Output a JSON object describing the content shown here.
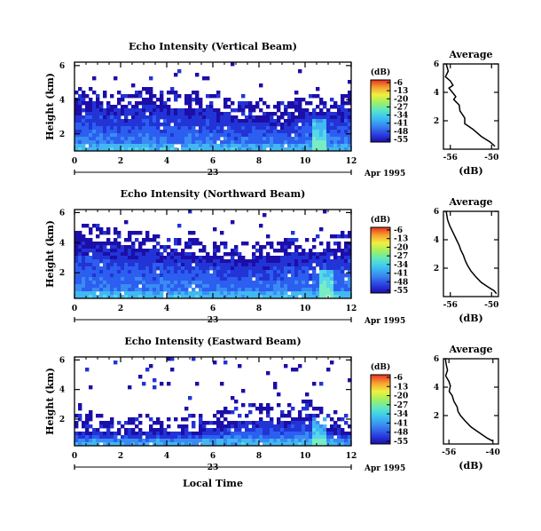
{
  "chart_data": [
    {
      "type": "heatmap",
      "title": "Echo Intensity (Vertical Beam)",
      "ylabel": "Height (km)",
      "x_ticks": [
        "0",
        "2",
        "4",
        "6",
        "8",
        "10",
        "12"
      ],
      "y_ticks": [
        "2",
        "4",
        "6"
      ],
      "xlim": [
        0,
        12
      ],
      "ylim": [
        1,
        6.2
      ],
      "date_day": "23",
      "date_label": "Apr 1995",
      "colorbar": {
        "unit": "(dB)",
        "ticks": [
          "-6",
          "-13",
          "-20",
          "-27",
          "-34",
          "-41",
          "-48",
          "-55"
        ]
      },
      "echo_top_km": [
        4.0,
        4.0,
        3.6,
        3.9,
        3.7,
        3.7,
        3.5,
        3.0,
        3.2,
        3.0,
        3.5,
        3.3,
        3.7
      ],
      "core_peak": {
        "time_h": 10.6,
        "top_km": 3.0,
        "dB": -34
      },
      "average": {
        "title": "Average",
        "xlabel": "(dB)",
        "x_ticks": [
          "-56",
          "-50"
        ],
        "y_ticks": [
          "2",
          "4",
          "6"
        ],
        "xlim": [
          -57,
          -49
        ],
        "ylim": [
          0,
          6
        ],
        "x": [
          -56.6,
          -56.3,
          -56.7,
          -56.0,
          -55.6,
          -56.2,
          -55.7,
          -55.2,
          -55.5,
          -54.7,
          -54.6,
          -53.9,
          -53.9,
          -52.7,
          -51.5,
          -50.2,
          -49.5
        ],
        "y": [
          6.0,
          5.5,
          5.1,
          4.8,
          4.5,
          4.3,
          4.0,
          3.7,
          3.5,
          3.1,
          2.7,
          2.2,
          1.8,
          1.4,
          0.9,
          0.5,
          0.2
        ]
      }
    },
    {
      "type": "heatmap",
      "title": "Echo Intensity (Northward Beam)",
      "ylabel": "Height (km)",
      "x_ticks": [
        "0",
        "2",
        "4",
        "6",
        "8",
        "10",
        "12"
      ],
      "y_ticks": [
        "2",
        "4",
        "6"
      ],
      "xlim": [
        0,
        12
      ],
      "ylim": [
        0.3,
        6.2
      ],
      "date_day": "23",
      "date_label": "Apr 1995",
      "colorbar": {
        "unit": "(dB)",
        "ticks": [
          "-6",
          "-13",
          "-20",
          "-27",
          "-34",
          "-41",
          "-48",
          "-55"
        ]
      },
      "echo_top_km": [
        4.5,
        4.2,
        3.9,
        3.8,
        3.5,
        3.4,
        3.2,
        3.0,
        3.2,
        3.3,
        3.5,
        3.6,
        3.9
      ],
      "core_peak": {
        "time_h": 10.8,
        "top_km": 2.3,
        "dB": -37
      },
      "average": {
        "title": "Average",
        "xlabel": "(dB)",
        "x_ticks": [
          "-56",
          "-50"
        ],
        "y_ticks": [
          "2",
          "4",
          "6"
        ],
        "xlim": [
          -57,
          -49
        ],
        "ylim": [
          0,
          6
        ],
        "x": [
          -56.6,
          -56.4,
          -56.1,
          -55.7,
          -55.4,
          -55.1,
          -54.7,
          -54.5,
          -54.1,
          -53.8,
          -53.5,
          -53.0,
          -52.3,
          -51.5,
          -50.6,
          -49.6,
          -49.3
        ],
        "y": [
          6.0,
          5.4,
          5.0,
          4.6,
          4.3,
          4.0,
          3.6,
          3.3,
          2.9,
          2.5,
          2.2,
          1.8,
          1.4,
          1.0,
          0.7,
          0.4,
          0.2
        ]
      }
    },
    {
      "type": "heatmap",
      "title": "Echo Intensity (Eastward Beam)",
      "ylabel": "Height (km)",
      "xlabel": "Local Time",
      "x_ticks": [
        "0",
        "2",
        "4",
        "6",
        "8",
        "10",
        "12"
      ],
      "y_ticks": [
        "2",
        "4",
        "6"
      ],
      "xlim": [
        0,
        12
      ],
      "ylim": [
        0.2,
        6.2
      ],
      "date_day": "23",
      "date_label": "Apr 1995",
      "colorbar": {
        "unit": "(dB)",
        "ticks": [
          "-6",
          "-13",
          "-20",
          "-27",
          "-34",
          "-41",
          "-48",
          "-55"
        ]
      },
      "echo_top_km": [
        1.3,
        1.3,
        1.2,
        1.3,
        1.2,
        1.3,
        1.6,
        2.0,
        2.1,
        2.0,
        2.4,
        1.5,
        1.3
      ],
      "core_peak": {
        "time_h": 10.6,
        "top_km": 2.3,
        "dB": -41
      },
      "average": {
        "title": "Average",
        "xlabel": "(dB)",
        "x_ticks": [
          "-56",
          "-40"
        ],
        "y_ticks": [
          "2",
          "4",
          "6"
        ],
        "xlim": [
          -58,
          -38
        ],
        "ylim": [
          0,
          6
        ],
        "x": [
          -57.3,
          -57.0,
          -56.5,
          -57.2,
          -56.0,
          -55.5,
          -55.9,
          -54.8,
          -54.2,
          -53.0,
          -52.7,
          -51.8,
          -50.0,
          -48.0,
          -45.0,
          -42.0,
          -40.0
        ],
        "y": [
          6.0,
          5.6,
          5.2,
          4.8,
          4.4,
          4.1,
          3.7,
          3.4,
          3.0,
          2.6,
          2.3,
          2.0,
          1.6,
          1.2,
          0.8,
          0.4,
          0.2
        ]
      }
    }
  ]
}
